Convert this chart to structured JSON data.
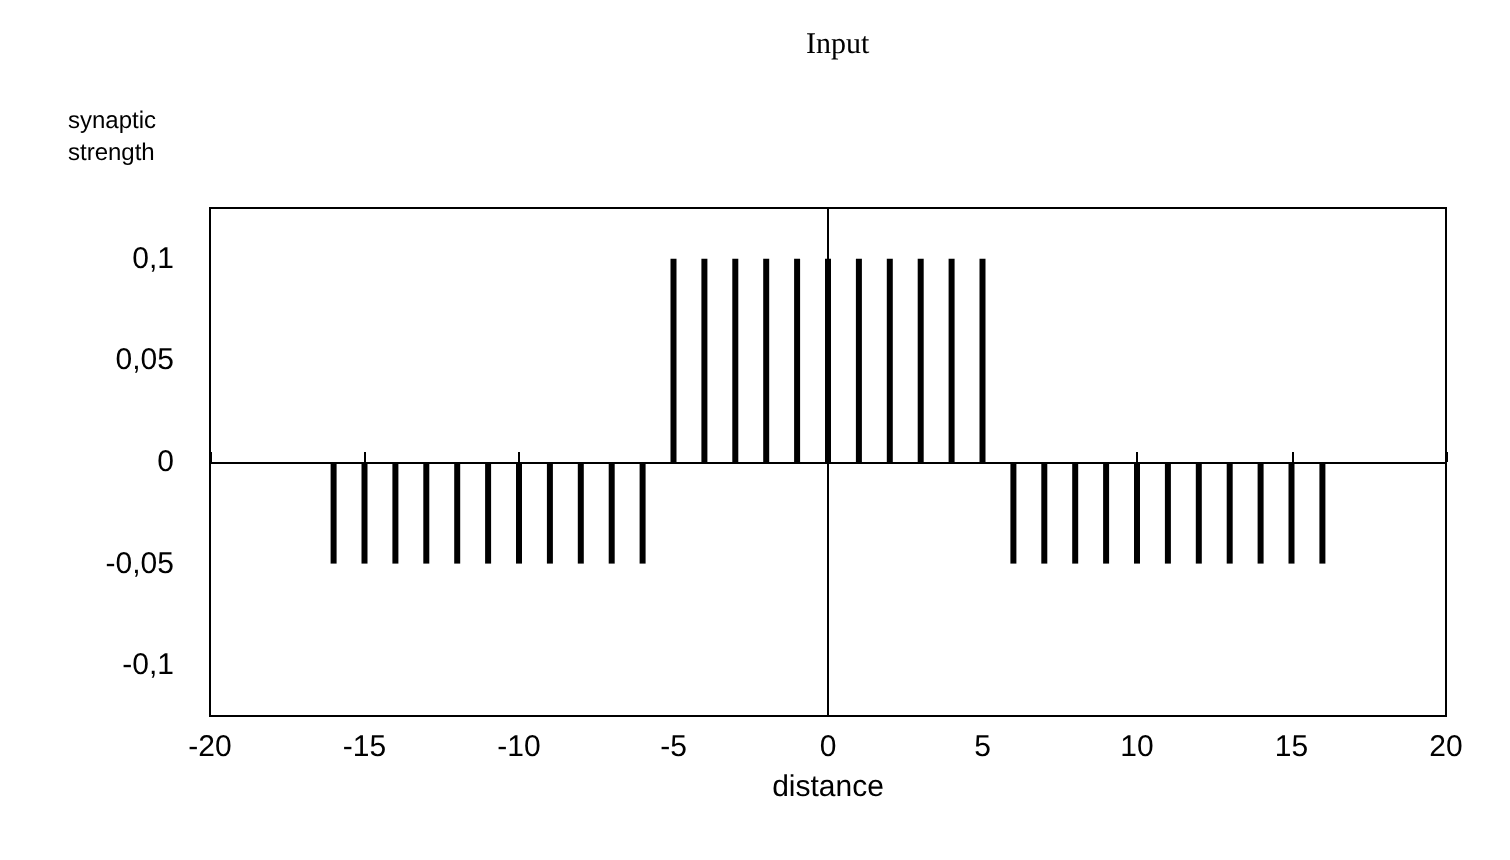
{
  "chart_data": {
    "type": "bar",
    "title": "Input",
    "xlabel": "distance",
    "ylabel": "synaptic strength",
    "x": [
      -16,
      -15,
      -14,
      -13,
      -12,
      -11,
      -10,
      -9,
      -8,
      -7,
      -6,
      -5,
      -4,
      -3,
      -2,
      -1,
      0,
      1,
      2,
      3,
      4,
      5,
      6,
      7,
      8,
      9,
      10,
      11,
      12,
      13,
      14,
      15,
      16
    ],
    "values": [
      -0.05,
      -0.05,
      -0.05,
      -0.05,
      -0.05,
      -0.05,
      -0.05,
      -0.05,
      -0.05,
      -0.05,
      -0.05,
      0.1,
      0.1,
      0.1,
      0.1,
      0.1,
      0.1,
      0.1,
      0.1,
      0.1,
      0.1,
      0.1,
      -0.05,
      -0.05,
      -0.05,
      -0.05,
      -0.05,
      -0.05,
      -0.05,
      -0.05,
      -0.05,
      -0.05,
      -0.05
    ],
    "color": "#000000",
    "xlim": [
      -20,
      20
    ],
    "xticks": [
      -20,
      -15,
      -10,
      -5,
      0,
      5,
      10,
      15,
      20
    ],
    "ylim": [
      -0.125,
      0.125
    ],
    "yticks": [
      {
        "value": -0.1,
        "label": "-0,1"
      },
      {
        "value": -0.05,
        "label": "-0,05"
      },
      {
        "value": 0,
        "label": "0"
      },
      {
        "value": 0.05,
        "label": "0,05"
      },
      {
        "value": 0.1,
        "label": "0,1"
      }
    ],
    "tick_labels": "xy"
  }
}
